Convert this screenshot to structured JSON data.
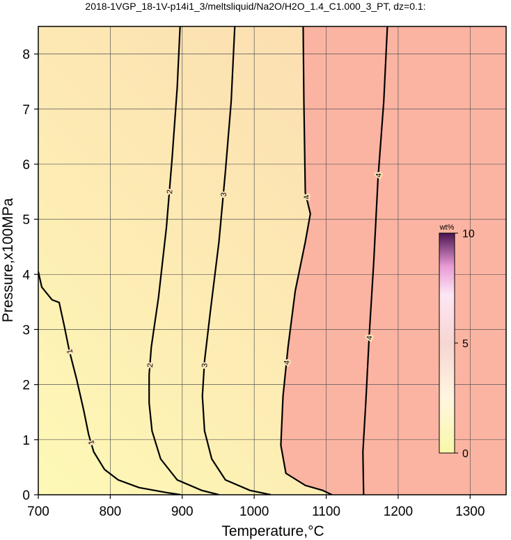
{
  "chart_data": {
    "type": "contour",
    "title": "2018-1VGP_18-1V-p14i1_3/meltsliquid/Na2O/H2O_1.4_C1.000_3_PT, dz=0.1:",
    "x_label": "Temperature,°C",
    "y_label": "Pressure,x100MPa",
    "xlim": [
      700,
      1350
    ],
    "ylim": [
      0,
      8.5
    ],
    "xticks": [
      700,
      800,
      900,
      1000,
      1100,
      1200,
      1300
    ],
    "yticks": [
      0,
      1,
      2,
      3,
      4,
      5,
      6,
      7,
      8
    ],
    "grid": true,
    "colors": {
      "low": "#fdeeb4",
      "high": "#fcb4a2",
      "line": "#000000"
    },
    "contours": [
      {
        "level": 1,
        "x": [
          700,
          704.8,
          719,
          729,
          736,
          743,
          753,
          763,
          770,
          777,
          792,
          811,
          840,
          878,
          898
        ],
        "y": [
          4.05,
          3.77,
          3.54,
          3.49,
          3.07,
          2.62,
          2.11,
          1.54,
          1.09,
          0.78,
          0.46,
          0.27,
          0.13,
          0.04,
          0
        ]
      },
      {
        "level": 2,
        "x": [
          897,
          893,
          886,
          878,
          867,
          857,
          854,
          854,
          858,
          870,
          893,
          927,
          951
        ],
        "y": [
          8.5,
          7.39,
          6.12,
          4.85,
          3.58,
          2.68,
          2.18,
          1.67,
          1.16,
          0.65,
          0.27,
          0.08,
          0
        ]
      },
      {
        "level": 3,
        "x": [
          973,
          968,
          960,
          951,
          939,
          931,
          928,
          931,
          941,
          960,
          994,
          1023
        ],
        "y": [
          8.5,
          7.14,
          5.87,
          4.59,
          3.32,
          2.43,
          1.79,
          1.16,
          0.65,
          0.27,
          0.08,
          0
        ]
      },
      {
        "level": 4,
        "x": [
          1068,
          1069,
          1071,
          1078,
          1071,
          1057,
          1047,
          1040,
          1037,
          1044,
          1071,
          1095,
          1108
        ],
        "y": [
          8.5,
          7.14,
          5.48,
          5.1,
          4.59,
          3.7,
          2.68,
          1.79,
          0.9,
          0.39,
          0.17,
          0.08,
          0
        ]
      },
      {
        "level": 4,
        "x": [
          1185,
          1180,
          1172,
          1166,
          1160,
          1155,
          1151,
          1152
        ],
        "y": [
          8.5,
          7.14,
          5.74,
          4.21,
          2.94,
          1.67,
          0.78,
          0
        ]
      }
    ],
    "colorbar": {
      "label": "wt%",
      "lim": [
        0,
        10
      ],
      "ticks": [
        0,
        5,
        10
      ]
    }
  }
}
